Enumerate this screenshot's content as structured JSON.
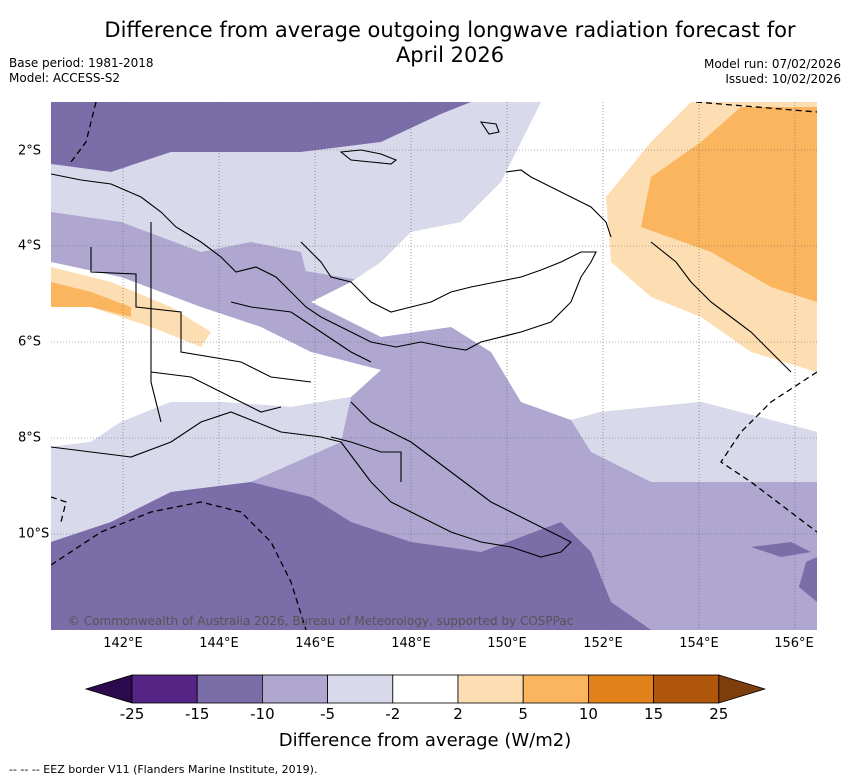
{
  "title": {
    "line1": "Difference from average outgoing longwave radiation forecast for",
    "line2": "April 2026"
  },
  "meta_left": {
    "base_period": "Base period: 1981-2018",
    "model": "Model: ACCESS-S2"
  },
  "meta_right": {
    "model_run": "Model run: 07/02/2026",
    "issued": "Issued: 10/02/2026"
  },
  "copyright": "© Commonwealth of Australia 2026, Bureau of Meteorology, supported by COSPPac",
  "axes": {
    "x_ticks": [
      "142°E",
      "144°E",
      "146°E",
      "148°E",
      "150°E",
      "152°E",
      "154°E",
      "156°E"
    ],
    "y_ticks": [
      "2°S",
      "4°S",
      "6°S",
      "8°S",
      "10°S"
    ]
  },
  "colorbar": {
    "title": "Difference from average (W/m2)",
    "labels": [
      "-25",
      "-15",
      "-10",
      "-5",
      "-2",
      "2",
      "5",
      "10",
      "15",
      "25"
    ],
    "colors": [
      "#562485",
      "#7a6da8",
      "#afa7d0",
      "#d8d9ea",
      "#ffffff",
      "#fddeb2",
      "#fbb55e",
      "#e0811a",
      "#b0560a"
    ],
    "under_color": "#2d0a4e",
    "over_color": "#7e3d0c"
  },
  "footer": "--  --  -- EEZ border V11 (Flanders Marine Institute, 2019)."
}
